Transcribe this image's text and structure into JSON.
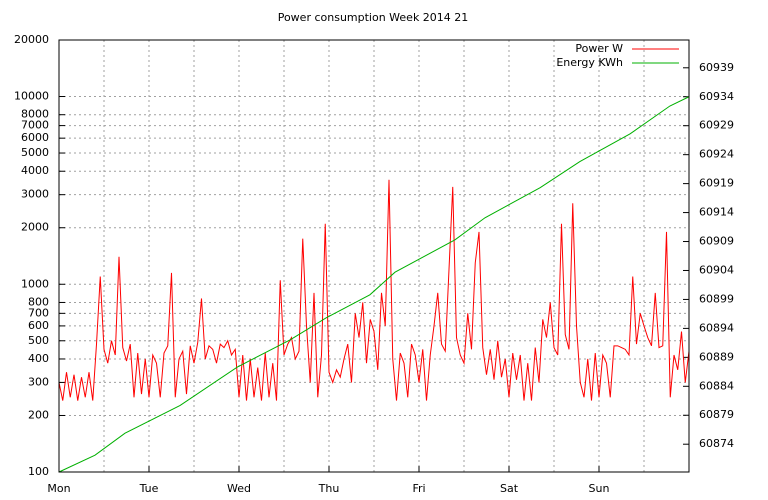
{
  "chart_data": {
    "type": "line",
    "title": "Power consumption Week 2014 21",
    "xlim": [
      0,
      168
    ],
    "xticks": [
      {
        "value": 0,
        "label": "Mon"
      },
      {
        "value": 24,
        "label": "Tue"
      },
      {
        "value": 48,
        "label": "Wed"
      },
      {
        "value": 72,
        "label": "Thu"
      },
      {
        "value": 96,
        "label": "Fri"
      },
      {
        "value": 120,
        "label": "Sat"
      },
      {
        "value": 144,
        "label": "Sun"
      }
    ],
    "xgrid": [
      12,
      36,
      60,
      84,
      108,
      132,
      156
    ],
    "ylim": [
      100,
      20000
    ],
    "log_y": true,
    "yticks": [
      100,
      200,
      300,
      400,
      500,
      600,
      700,
      800,
      1000,
      2000,
      3000,
      4000,
      5000,
      6000,
      7000,
      8000,
      10000,
      20000
    ],
    "y2lim": [
      60869.2,
      60943.8
    ],
    "y2ticks": [
      60874,
      60879,
      60884,
      60889,
      60894,
      60899,
      60904,
      60909,
      60914,
      60919,
      60924,
      60929,
      60934,
      60939
    ],
    "grid": true,
    "legend": "top-right",
    "series": [
      {
        "name": "Power W",
        "color": "#ff0000",
        "x": [
          0,
          1,
          2,
          3,
          4,
          5,
          6,
          7,
          8,
          9,
          10,
          11,
          12,
          13,
          14,
          15,
          16,
          17,
          18,
          19,
          20,
          21,
          22,
          23,
          24,
          25,
          26,
          27,
          28,
          29,
          30,
          31,
          32,
          33,
          34,
          35,
          36,
          37,
          38,
          39,
          40,
          41,
          42,
          43,
          44,
          45,
          46,
          47,
          48,
          49,
          50,
          51,
          52,
          53,
          54,
          55,
          56,
          57,
          58,
          59,
          60,
          61,
          62,
          63,
          64,
          65,
          66,
          67,
          68,
          69,
          70,
          71,
          72,
          73,
          74,
          75,
          76,
          77,
          78,
          79,
          80,
          81,
          82,
          83,
          84,
          85,
          86,
          87,
          88,
          89,
          90,
          91,
          92,
          93,
          94,
          95,
          96,
          97,
          98,
          99,
          100,
          101,
          102,
          103,
          104,
          105,
          106,
          107,
          108,
          109,
          110,
          111,
          112,
          113,
          114,
          115,
          116,
          117,
          118,
          119,
          120,
          121,
          122,
          123,
          124,
          125,
          126,
          127,
          128,
          129,
          130,
          131,
          132,
          133,
          134,
          135,
          136,
          137,
          138,
          139,
          140,
          141,
          142,
          143,
          144,
          145,
          146,
          147,
          148,
          149,
          150,
          151,
          152,
          153,
          154,
          155,
          156,
          157,
          158,
          159,
          160,
          161,
          162,
          163,
          164,
          165,
          166,
          167,
          168
        ],
        "values": [
          300,
          240,
          340,
          250,
          330,
          240,
          320,
          250,
          340,
          240,
          480,
          1100,
          450,
          380,
          500,
          420,
          1400,
          460,
          390,
          480,
          250,
          430,
          260,
          400,
          250,
          420,
          380,
          250,
          430,
          470,
          1150,
          250,
          400,
          440,
          260,
          470,
          380,
          490,
          840,
          400,
          470,
          450,
          380,
          480,
          460,
          500,
          420,
          450,
          250,
          420,
          240,
          400,
          250,
          360,
          240,
          430,
          250,
          380,
          240,
          1050,
          420,
          480,
          520,
          400,
          440,
          1750,
          600,
          300,
          900,
          250,
          420,
          2100,
          340,
          300,
          350,
          320,
          400,
          480,
          300,
          700,
          520,
          800,
          380,
          650,
          560,
          350,
          900,
          600,
          3600,
          400,
          240,
          430,
          380,
          250,
          480,
          420,
          300,
          450,
          240,
          420,
          600,
          900,
          480,
          440,
          1200,
          3300,
          520,
          420,
          380,
          700,
          450,
          1300,
          1900,
          460,
          330,
          450,
          310,
          500,
          320,
          400,
          250,
          430,
          310,
          420,
          240,
          380,
          240,
          460,
          300,
          650,
          520,
          800,
          460,
          420,
          2100,
          540,
          450,
          2700,
          600,
          300,
          250,
          400,
          240,
          430,
          250,
          420,
          380,
          250,
          470,
          470,
          460,
          450,
          420,
          1100,
          480,
          700,
          600,
          520,
          470,
          900,
          460,
          470,
          1900,
          250,
          420,
          350,
          560,
          300,
          440
        ]
      },
      {
        "name": "Energy KWh",
        "color": "#00b000",
        "axis": "y2",
        "x": [
          0,
          9.6,
          17.6,
          32.3,
          47.5,
          61.6,
          71.2,
          82.9,
          89.6,
          105.6,
          113.6,
          128.3,
          138.9,
          152.3,
          162.9,
          168
        ],
        "values": [
          60869.2,
          60872.1,
          60875.9,
          60880.7,
          60887.3,
          60892.0,
          60895.8,
          60899.8,
          60903.7,
          60909.3,
          60913.1,
          60918.3,
          60922.8,
          60927.6,
          60932.4,
          60934.0
        ]
      }
    ]
  }
}
